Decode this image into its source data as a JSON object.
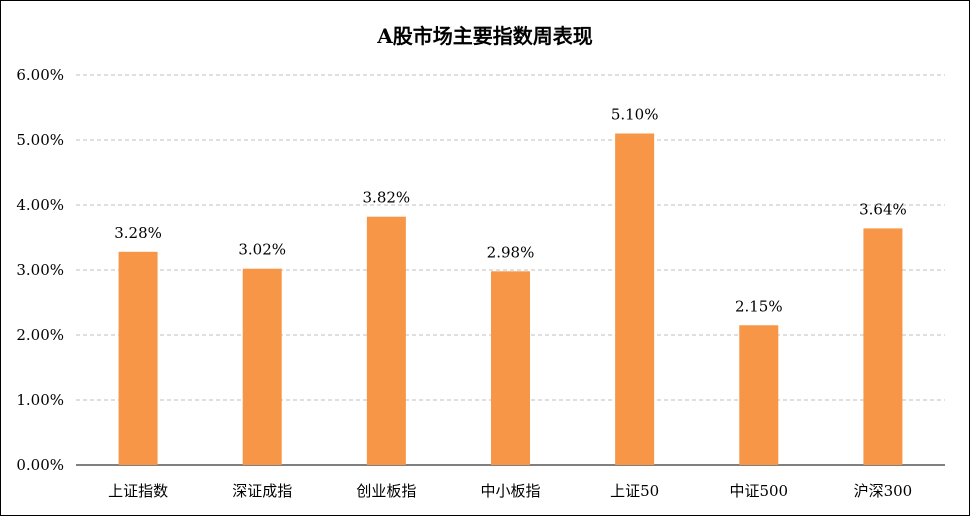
{
  "chart_data": {
    "type": "bar",
    "title": "A股市场主要指数周表现",
    "xlabel": "",
    "ylabel": "",
    "categories": [
      "上证指数",
      "深证成指",
      "创业板指",
      "中小板指",
      "上证50",
      "中证500",
      "沪深300"
    ],
    "values": [
      3.28,
      3.02,
      3.82,
      2.98,
      5.1,
      2.15,
      3.64
    ],
    "data_labels": [
      "3.28%",
      "3.02%",
      "3.82%",
      "2.98%",
      "5.10%",
      "2.15%",
      "3.64%"
    ],
    "ylim": [
      0,
      6
    ],
    "yticks": [
      0,
      1,
      2,
      3,
      4,
      5,
      6
    ],
    "ytick_labels": [
      "0.00%",
      "1.00%",
      "2.00%",
      "3.00%",
      "4.00%",
      "5.00%",
      "6.00%"
    ],
    "grid": true,
    "legend": "none",
    "bar_color": "#F79646",
    "grid_color": "#BFBFBF"
  }
}
